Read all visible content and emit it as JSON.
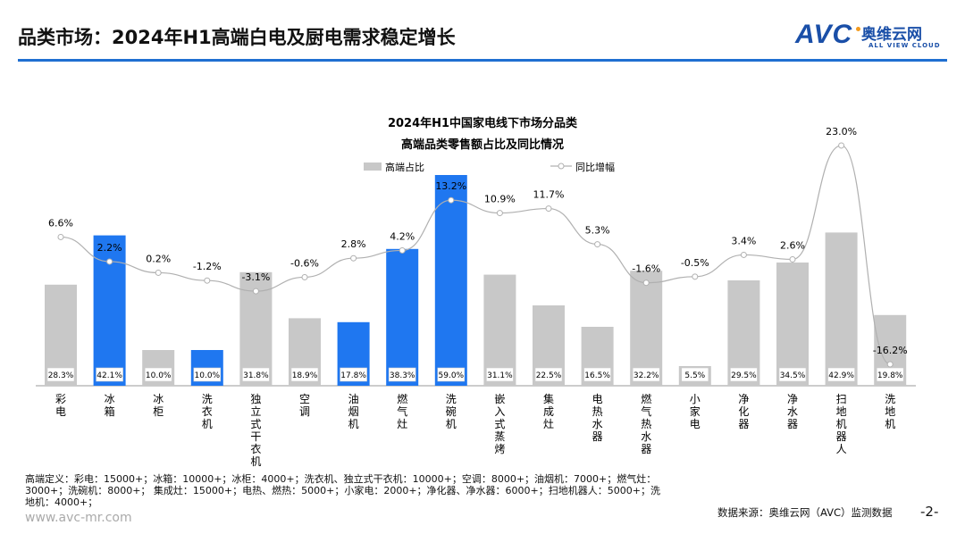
{
  "header": {
    "title": "品类市场：2024年H1高端白电及厨电需求稳定增长"
  },
  "logo": {
    "mark": "AVC",
    "cn": "奥维云网",
    "en": "ALL VIEW CLOUD"
  },
  "colors": {
    "accent": "#1f6fd1",
    "bar_gray": "#c8c8c8",
    "bar_blue": "#1f77f0",
    "line": "#b0b0b0"
  },
  "chart_data": {
    "type": "bar+line",
    "title": [
      "2024年H1中国家电线下市场分品类",
      "高端品类零售额占比及同比情况"
    ],
    "legend_position": "top",
    "grid": false,
    "categories": [
      "彩电",
      "冰箱",
      "冰柜",
      "洗衣机",
      "独立式干衣机",
      "空调",
      "油烟机",
      "燃气灶",
      "洗碗机",
      "嵌入式蒸烤",
      "集成灶",
      "电热水器",
      "燃气热水器",
      "小家电",
      "净化器",
      "净水器",
      "扫地机器人",
      "洗地机"
    ],
    "series": [
      {
        "name": "高端占比",
        "type": "bar",
        "unit": "%",
        "values": [
          28.3,
          42.1,
          10.0,
          10.0,
          31.8,
          18.9,
          17.8,
          38.3,
          59.0,
          31.1,
          22.5,
          16.5,
          32.2,
          5.5,
          29.5,
          34.5,
          42.9,
          19.8
        ],
        "highlighted": [
          "冰箱",
          "洗衣机",
          "油烟机",
          "燃气灶",
          "洗碗机"
        ]
      },
      {
        "name": "同比增幅",
        "type": "line",
        "unit": "%",
        "values": [
          6.6,
          2.2,
          0.2,
          -1.2,
          -3.1,
          -0.6,
          2.8,
          4.2,
          13.2,
          10.9,
          11.7,
          5.3,
          -1.6,
          -0.5,
          3.4,
          2.6,
          23.0,
          -16.2
        ]
      }
    ]
  },
  "footer": {
    "note": "高端定义：彩电：15000+；冰箱：10000+；冰柜：4000+；洗衣机、独立式干衣机：10000+；空调：8000+；油烟机：7000+；燃气灶：3000+；洗碗机：8000+； 集成灶：15000+；电热、燃热：5000+；小家电：2000+；净化器、净水器：6000+；扫地机器人：5000+；洗地机：4000+；",
    "site": "www.avc-mr.com",
    "source": "数据来源：奥维云网（AVC）监测数据",
    "page": "-2-"
  }
}
